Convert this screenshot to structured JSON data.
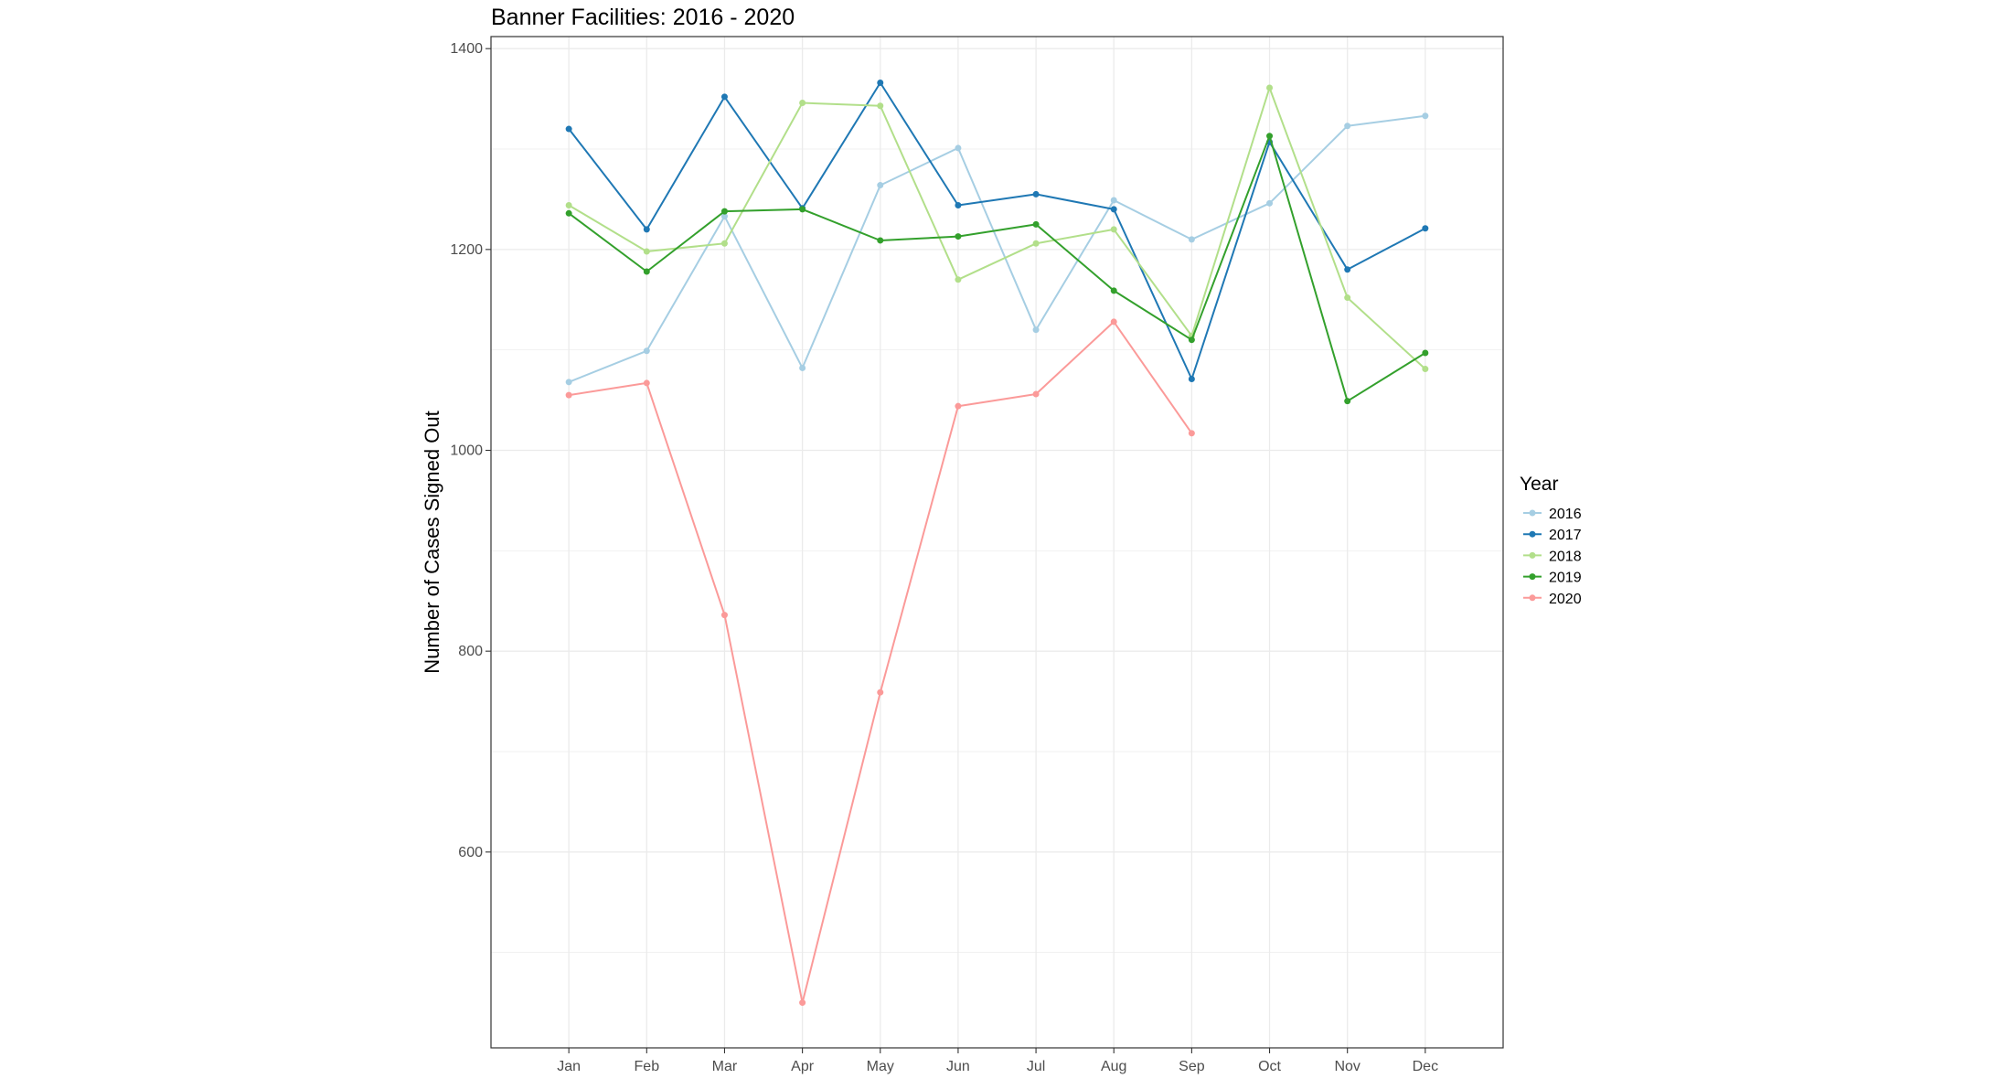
{
  "chart_data": {
    "type": "line",
    "title": "Banner Facilities: 2016 - 2020",
    "xlabel": "",
    "ylabel": "Number of Cases Signed Out",
    "categories": [
      "Jan",
      "Feb",
      "Mar",
      "Apr",
      "May",
      "Jun",
      "Jul",
      "Aug",
      "Sep",
      "Oct",
      "Nov",
      "Dec"
    ],
    "ylim": [
      405,
      1412
    ],
    "yticks": [
      600,
      800,
      1000,
      1200,
      1400
    ],
    "grid": true,
    "legend": {
      "title": "Year",
      "placement": "right"
    },
    "series": [
      {
        "name": "2016",
        "color": "#a6cee3",
        "values": [
          1068,
          1099,
          1233,
          1082,
          1264,
          1301,
          1120,
          1249,
          1210,
          1246,
          1323,
          1333
        ]
      },
      {
        "name": "2017",
        "color": "#1f78b4",
        "values": [
          1320,
          1220,
          1352,
          1241,
          1366,
          1244,
          1255,
          1240,
          1071,
          1307,
          1180,
          1221
        ]
      },
      {
        "name": "2018",
        "color": "#b2df8a",
        "values": [
          1244,
          1198,
          1206,
          1346,
          1343,
          1170,
          1206,
          1220,
          1114,
          1361,
          1152,
          1081
        ]
      },
      {
        "name": "2019",
        "color": "#33a02c",
        "values": [
          1236,
          1178,
          1238,
          1240,
          1209,
          1213,
          1225,
          1159,
          1110,
          1313,
          1049,
          1097
        ]
      },
      {
        "name": "2020",
        "color": "#fb9a99",
        "values": [
          1055,
          1067,
          836,
          450,
          759,
          1044,
          1056,
          1128,
          1017,
          null,
          null,
          null
        ]
      }
    ]
  }
}
